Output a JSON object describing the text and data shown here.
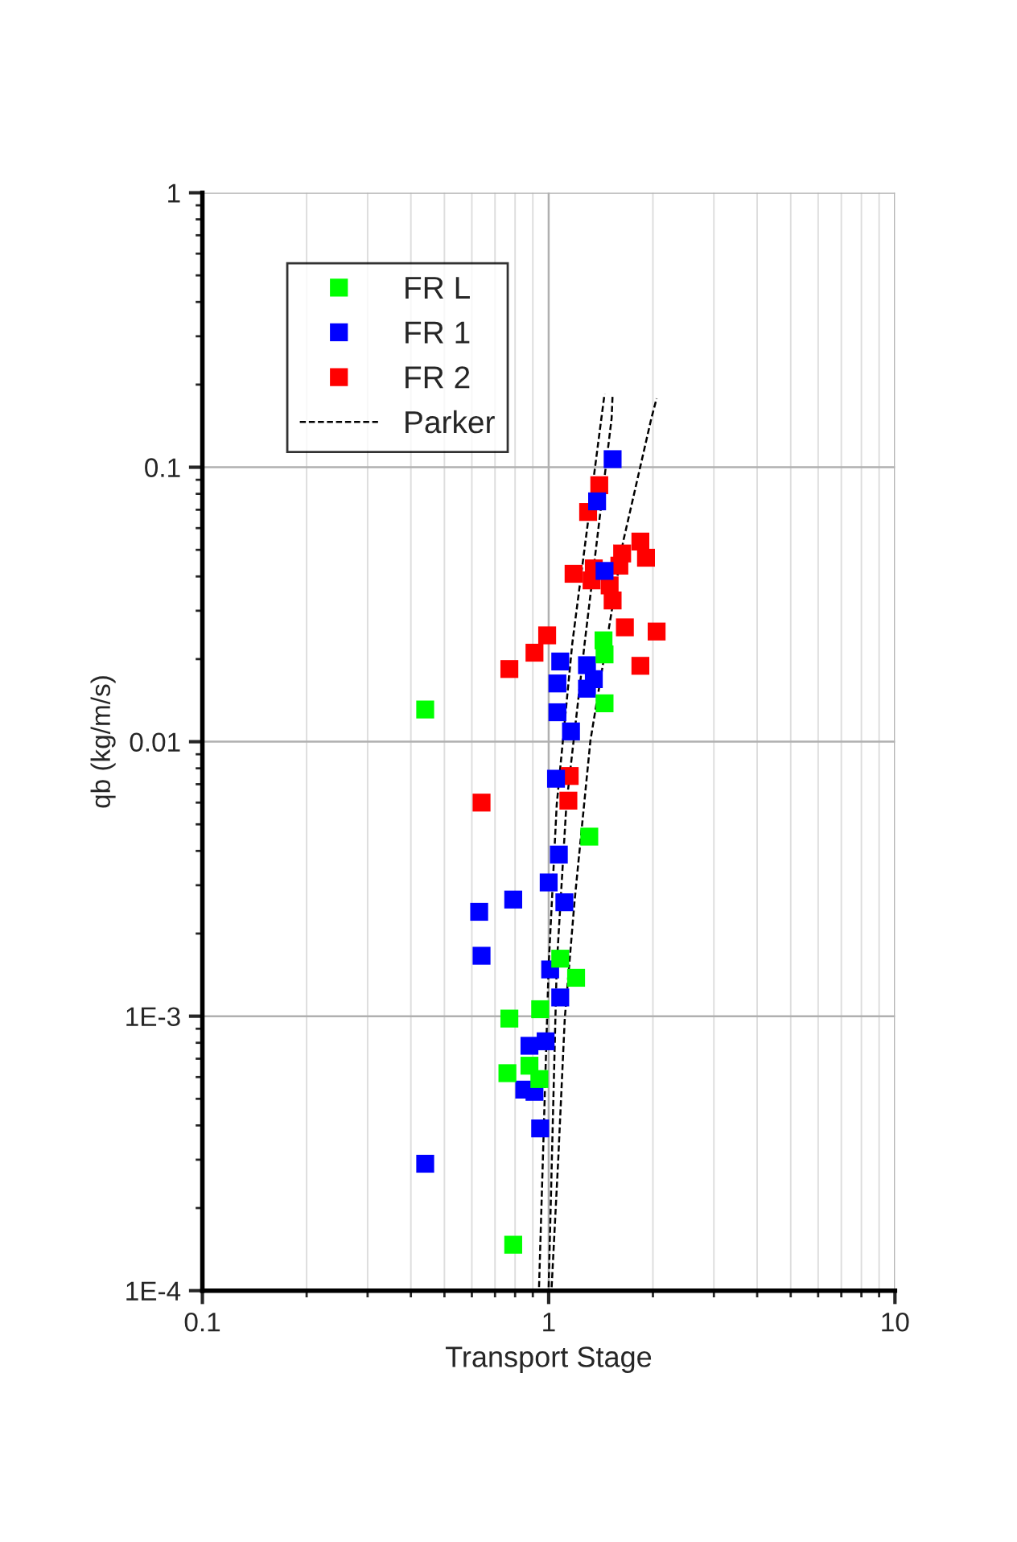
{
  "chart_data": {
    "type": "scatter",
    "xlabel": "Transport Stage",
    "ylabel": "qb (kg/m/s)",
    "log": "xy",
    "xlim": [
      0.1,
      10
    ],
    "xticks": [
      0.1,
      1,
      10
    ],
    "ylim": [
      0.0001,
      1
    ],
    "yticks": [
      {
        "value": 0.0001,
        "label": "1E-4"
      },
      {
        "value": 0.001,
        "label": "1E-3"
      },
      0.01,
      0.1,
      1
    ],
    "grid": true,
    "legend": "top left",
    "marker": "square",
    "series": [
      {
        "name": "FR L",
        "color": "#00ff00",
        "x": [
          0.44,
          1.44,
          1.45,
          1.45,
          1.31,
          1.08,
          1.2,
          0.945,
          0.77,
          0.88,
          0.76,
          0.94,
          0.79
        ],
        "values": [
          0.0131,
          0.0234,
          0.0208,
          0.0138,
          0.00451,
          0.00162,
          0.00138,
          0.00106,
          0.00098,
          0.00066,
          0.00062,
          0.00059,
          0.000147
        ]
      },
      {
        "name": "FR 1",
        "color": "#0000ff",
        "x": [
          1.53,
          1.38,
          1.45,
          1.08,
          1.29,
          1.35,
          1.06,
          1.29,
          1.06,
          1.16,
          1.05,
          1.07,
          1.0,
          1.11,
          0.79,
          0.63,
          0.64,
          1.01,
          1.08,
          0.98,
          0.88,
          0.85,
          0.91,
          0.945,
          0.44
        ],
        "values": [
          0.107,
          0.0751,
          0.0419,
          0.0196,
          0.019,
          0.0169,
          0.0163,
          0.0156,
          0.0128,
          0.0109,
          0.00733,
          0.00388,
          0.00307,
          0.0026,
          0.00266,
          0.0024,
          0.00166,
          0.00148,
          0.00117,
          0.00081,
          0.00078,
          0.00054,
          0.00053,
          0.00039,
          0.00029
        ]
      },
      {
        "name": "FR 2",
        "color": "#ff0000",
        "x": [
          1.4,
          1.3,
          1.18,
          1.35,
          1.33,
          1.63,
          1.6,
          1.84,
          1.91,
          1.5,
          1.53,
          1.66,
          2.05,
          1.84,
          0.99,
          0.91,
          0.77,
          1.15,
          1.14,
          0.64
        ],
        "values": [
          0.086,
          0.0687,
          0.0409,
          0.0428,
          0.0387,
          0.0485,
          0.0438,
          0.0536,
          0.0468,
          0.0371,
          0.0327,
          0.0261,
          0.0252,
          0.0189,
          0.0244,
          0.0211,
          0.0184,
          0.0075,
          0.0061,
          0.006
        ]
      },
      {
        "name": "Parker",
        "type": "line",
        "color": "#000000",
        "line_style": "dashed",
        "marker": "none",
        "x": [
          0.938,
          1.0,
          1.055,
          1.17,
          1.42,
          1.45
        ],
        "values": [
          0.000103,
          0.00153,
          0.0059,
          0.0228,
          0.151,
          0.185
        ]
      },
      {
        "type": "line",
        "color": "#000000",
        "line_style": "dashed",
        "marker": "none",
        "x": [
          1.0,
          1.055,
          1.125,
          1.27,
          1.52,
          1.53
        ],
        "values": [
          0.000103,
          0.00153,
          0.0059,
          0.0228,
          0.151,
          0.185
        ]
      },
      {
        "type": "line",
        "color": "#000000",
        "line_style": "dashed",
        "marker": "none",
        "x": [
          1.02,
          1.066,
          1.113,
          1.187,
          1.32,
          1.64,
          1.98,
          2.05
        ],
        "values": [
          0.000103,
          0.000303,
          0.00098,
          0.0026,
          0.0101,
          0.0534,
          0.151,
          0.178
        ]
      }
    ]
  }
}
